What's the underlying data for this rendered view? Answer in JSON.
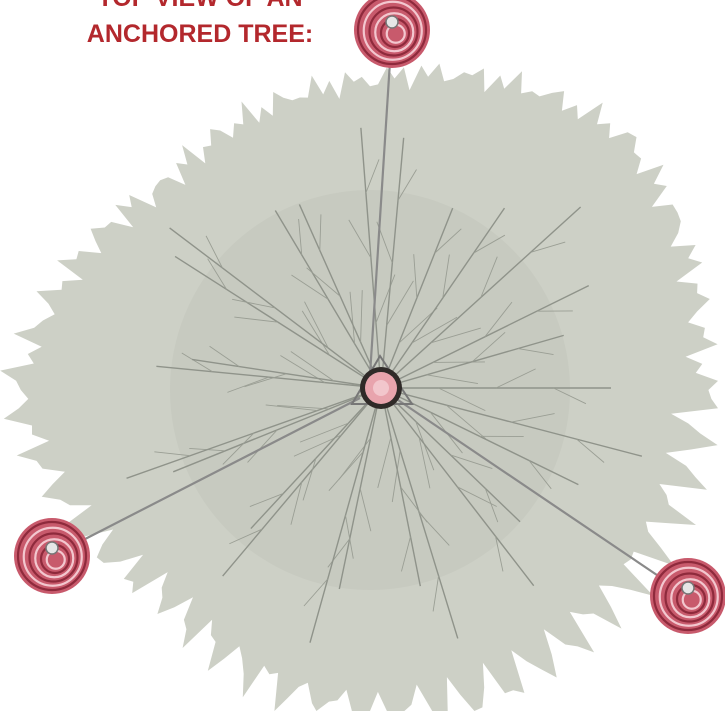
{
  "title": {
    "line1": "TOP VIEW OF AN",
    "line2": "ANCHORED TREE:"
  }
}
